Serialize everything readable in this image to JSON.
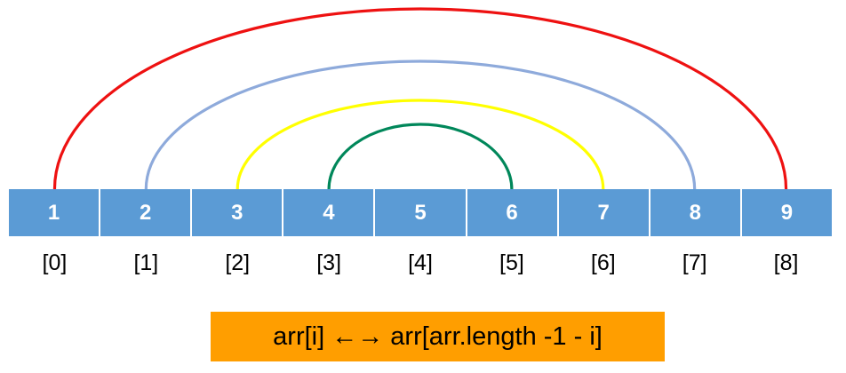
{
  "array": {
    "values": [
      "1",
      "2",
      "3",
      "4",
      "5",
      "6",
      "7",
      "8",
      "9"
    ],
    "indices": [
      "[0]",
      "[1]",
      "[2]",
      "[3]",
      "[4]",
      "[5]",
      "[6]",
      "[7]",
      "[8]"
    ]
  },
  "swap_arcs": [
    {
      "from_index": 0,
      "to_index": 8,
      "color": "#ee1111"
    },
    {
      "from_index": 1,
      "to_index": 7,
      "color": "#8eaadb"
    },
    {
      "from_index": 2,
      "to_index": 6,
      "color": "#ffff00"
    },
    {
      "from_index": 3,
      "to_index": 5,
      "color": "#00875a"
    }
  ],
  "cell_color": "#5b9bd5",
  "formula": {
    "text": "arr[i] ←→ arr[arr.length -1 - i]",
    "background": "#ff9e00"
  }
}
